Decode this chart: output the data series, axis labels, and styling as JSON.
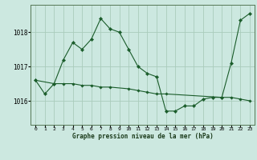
{
  "title": "Graphe pression niveau de la mer (hPa)",
  "background_color": "#cce8e0",
  "grid_color": "#aaccbb",
  "line_color": "#1a5c2a",
  "ylim": [
    1015.3,
    1018.8
  ],
  "xlim": [
    -0.5,
    23.5
  ],
  "yticks": [
    1016,
    1017,
    1018
  ],
  "xtick_labels": [
    "0",
    "1",
    "2",
    "3",
    "4",
    "5",
    "6",
    "7",
    "8",
    "9",
    "10",
    "11",
    "12",
    "13",
    "14",
    "15",
    "16",
    "17",
    "18",
    "19",
    "20",
    "21",
    "22",
    "23"
  ],
  "series1_x": [
    0,
    1,
    2,
    3,
    4,
    5,
    6,
    7,
    8,
    9,
    10,
    11,
    12,
    13,
    14,
    15,
    16,
    17,
    18,
    19,
    20,
    21,
    22,
    23
  ],
  "series1_y": [
    1016.6,
    1016.2,
    1016.5,
    1017.2,
    1017.7,
    1017.5,
    1017.8,
    1018.4,
    1018.1,
    1018.0,
    1017.5,
    1017.0,
    1016.8,
    1016.7,
    1015.7,
    1015.7,
    1015.85,
    1015.85,
    1016.05,
    1016.1,
    1016.1,
    1017.1,
    1018.35,
    1018.55
  ],
  "series2_x": [
    0,
    2,
    3,
    4,
    5,
    6,
    7,
    8,
    10,
    11,
    12,
    13,
    14,
    20,
    21,
    22,
    23
  ],
  "series2_y": [
    1016.6,
    1016.5,
    1016.5,
    1016.5,
    1016.45,
    1016.45,
    1016.4,
    1016.4,
    1016.35,
    1016.3,
    1016.25,
    1016.2,
    1016.2,
    1016.1,
    1016.1,
    1016.05,
    1016.0
  ]
}
